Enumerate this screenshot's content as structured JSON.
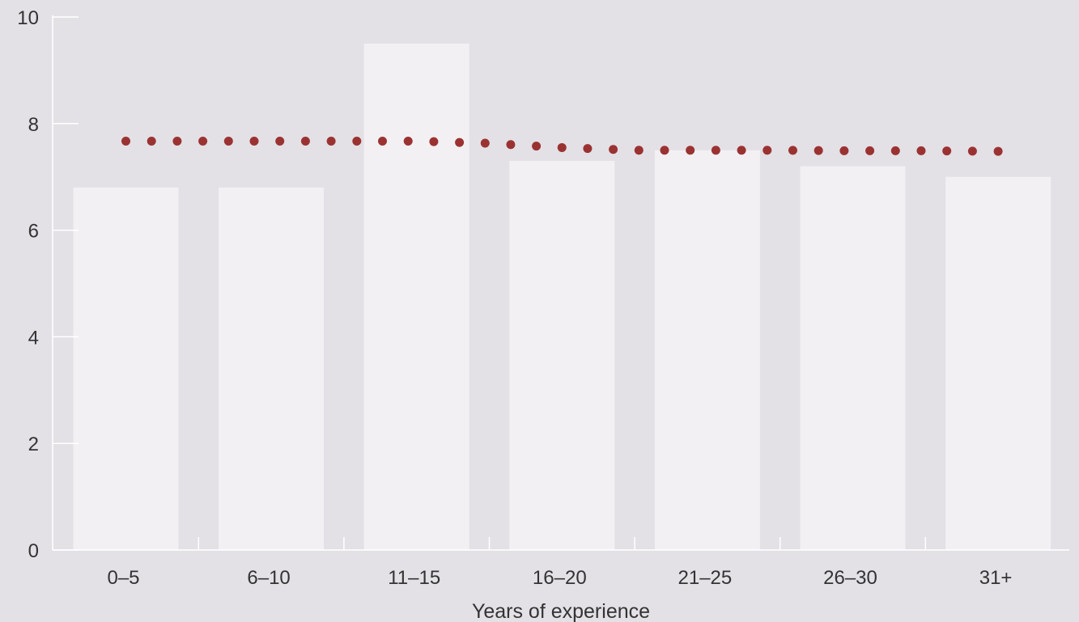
{
  "chart_data": {
    "type": "bar",
    "title": "",
    "xlabel": "Years of experience",
    "ylabel": "",
    "categories": [
      "0–5",
      "6–10",
      "11–15",
      "16–20",
      "21–25",
      "26–30",
      "31+"
    ],
    "series": [
      {
        "type": "bar",
        "values": [
          6.8,
          6.8,
          9.5,
          7.3,
          7.5,
          7.2,
          7.0
        ]
      },
      {
        "type": "line",
        "style": "dotted",
        "x": [
          0,
          0.5,
          1,
          1.5,
          2,
          2.5,
          3,
          3.5,
          4,
          4.5,
          5,
          5.5,
          6
        ],
        "values": [
          7.67,
          7.67,
          7.67,
          7.67,
          7.67,
          7.63,
          7.55,
          7.5,
          7.5,
          7.5,
          7.49,
          7.49,
          7.48
        ]
      }
    ],
    "ylim": [
      0,
      10
    ],
    "yticks": [
      "0",
      "2",
      "4",
      "6",
      "8",
      "10"
    ],
    "grid": false,
    "colors": {
      "background": "#e3e1e6",
      "bar": "#f2f0f3",
      "line": "#9b3232",
      "axis": "#ffffff",
      "text": "#333333"
    }
  }
}
